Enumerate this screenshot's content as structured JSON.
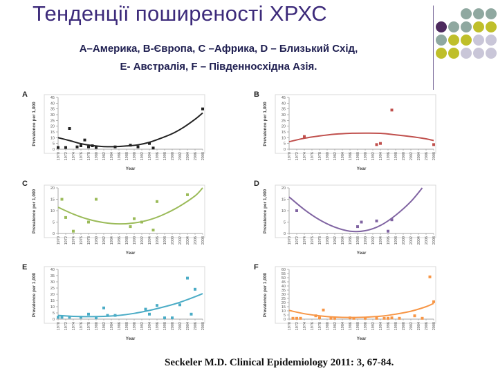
{
  "slide": {
    "title": "Тенденції поширеності ХРХС",
    "subtitle_line1": "А–Америка, В-Європа, С –Африка, D – Близький Схід,",
    "subtitle_line2": "Е- Австралія, F – Південносхідна Азія.",
    "citation": "Seckeler M.D. Clinical Epidemiology 2011: 3, 67-84.",
    "deco_colors": [
      "#4d2a5e",
      "#8fa8a0",
      "#bfbf2a",
      "#c9c6d8"
    ]
  },
  "chart_data": [
    {
      "type": "scatter",
      "panel": "A",
      "color": "#222222",
      "xlabel": "Year",
      "ylabel": "Prevalence per 1,000",
      "x_ticks": [
        "1970",
        "1972",
        "1974",
        "1976",
        "1978",
        "1980",
        "1982",
        "1984",
        "1986",
        "1988",
        "1990",
        "1992",
        "1994",
        "1996",
        "1998",
        "2000",
        "2002",
        "2004",
        "2006",
        "2008"
      ],
      "yticks": [
        0,
        5,
        10,
        15,
        20,
        25,
        30,
        35,
        40,
        45
      ],
      "ylim": [
        0,
        45
      ],
      "points": [
        [
          1970,
          1.5
        ],
        [
          1972,
          1.5
        ],
        [
          1973,
          18
        ],
        [
          1975,
          2
        ],
        [
          1976,
          3
        ],
        [
          1977,
          8
        ],
        [
          1978,
          2
        ],
        [
          1979,
          3
        ],
        [
          1980,
          1.5
        ],
        [
          1985,
          2
        ],
        [
          1989,
          3.5
        ],
        [
          1991,
          2
        ],
        [
          1994,
          5
        ],
        [
          1995,
          1
        ],
        [
          2008,
          35
        ]
      ],
      "trend": [
        [
          1970,
          10
        ],
        [
          1973,
          7.5
        ],
        [
          1976,
          4.8
        ],
        [
          1979,
          3.2
        ],
        [
          1982,
          2.3
        ],
        [
          1985,
          2.2
        ],
        [
          1988,
          2.8
        ],
        [
          1991,
          3.8
        ],
        [
          1994,
          6
        ],
        [
          1997,
          9.5
        ],
        [
          2000,
          13.5
        ],
        [
          2003,
          19
        ],
        [
          2006,
          26
        ],
        [
          2008,
          31.5
        ]
      ]
    },
    {
      "type": "scatter",
      "panel": "B",
      "color": "#c0504d",
      "xlabel": "Year",
      "ylabel": "Prevalence per 1,000",
      "x_ticks": [
        "1970",
        "1972",
        "1974",
        "1976",
        "1978",
        "1980",
        "1982",
        "1984",
        "1986",
        "1988",
        "1990",
        "1992",
        "1994",
        "1996",
        "1998",
        "2000",
        "2002",
        "2004",
        "2006",
        "2008"
      ],
      "yticks": [
        0,
        5,
        10,
        15,
        20,
        25,
        30,
        35,
        40,
        45
      ],
      "ylim": [
        0,
        45
      ],
      "points": [
        [
          1974,
          11
        ],
        [
          1993,
          4
        ],
        [
          1994,
          5
        ],
        [
          1997,
          34
        ],
        [
          2008,
          4
        ]
      ],
      "trend": [
        [
          1970,
          6.5
        ],
        [
          1974,
          9.5
        ],
        [
          1978,
          11.5
        ],
        [
          1982,
          13
        ],
        [
          1986,
          13.8
        ],
        [
          1990,
          14
        ],
        [
          1994,
          13.8
        ],
        [
          1998,
          12.5
        ],
        [
          2002,
          11
        ],
        [
          2006,
          9
        ],
        [
          2008,
          7.5
        ]
      ]
    },
    {
      "type": "scatter",
      "panel": "C",
      "color": "#9bbb59",
      "xlabel": "Year",
      "ylabel": "Prevalence per 1,000",
      "x_ticks": [
        "1970",
        "1972",
        "1974",
        "1976",
        "1978",
        "1980",
        "1982",
        "1984",
        "1986",
        "1988",
        "1990",
        "1992",
        "1994",
        "1996",
        "1998",
        "2000",
        "2002",
        "2004",
        "2006",
        "2008"
      ],
      "yticks": [
        0,
        5,
        10,
        15,
        20
      ],
      "ylim": [
        0,
        20
      ],
      "points": [
        [
          1971,
          15
        ],
        [
          1972,
          7
        ],
        [
          1974,
          1
        ],
        [
          1978,
          5
        ],
        [
          1980,
          15
        ],
        [
          1989,
          3
        ],
        [
          1990,
          6.5
        ],
        [
          1992,
          5
        ],
        [
          1995,
          1.5
        ],
        [
          1996,
          14
        ],
        [
          2004,
          17
        ]
      ],
      "trend": [
        [
          1970,
          11.5
        ],
        [
          1974,
          8.5
        ],
        [
          1978,
          6.2
        ],
        [
          1982,
          4.8
        ],
        [
          1986,
          4.2
        ],
        [
          1990,
          4.6
        ],
        [
          1994,
          6
        ],
        [
          1998,
          8.5
        ],
        [
          2002,
          12
        ],
        [
          2006,
          16.5
        ],
        [
          2008,
          20
        ]
      ]
    },
    {
      "type": "scatter",
      "panel": "D",
      "color": "#8064a2",
      "xlabel": "Year",
      "ylabel": "Prevalence per 1,000",
      "x_ticks": [
        "1970",
        "1972",
        "1974",
        "1976",
        "1978",
        "1980",
        "1982",
        "1984",
        "1986",
        "1988",
        "1990",
        "1992",
        "1994",
        "1996",
        "1998",
        "2000",
        "2002",
        "2004",
        "2006",
        "2008"
      ],
      "yticks": [
        0,
        5,
        10,
        15,
        20
      ],
      "ylim": [
        0,
        20
      ],
      "points": [
        [
          1972,
          10
        ],
        [
          1988,
          3
        ],
        [
          1989,
          5
        ],
        [
          1993,
          5.5
        ],
        [
          1996,
          1
        ],
        [
          1997,
          6
        ]
      ],
      "trend": [
        [
          1970,
          16
        ],
        [
          1974,
          10.5
        ],
        [
          1978,
          6
        ],
        [
          1982,
          2.8
        ],
        [
          1986,
          1
        ],
        [
          1990,
          1.2
        ],
        [
          1994,
          3.5
        ],
        [
          1998,
          8
        ],
        [
          2002,
          14
        ],
        [
          2005,
          20
        ]
      ]
    },
    {
      "type": "scatter",
      "panel": "E",
      "color": "#4bacc6",
      "xlabel": "Year",
      "ylabel": "Prevalence per 1,000",
      "x_ticks": [
        "1970",
        "1972",
        "1974",
        "1976",
        "1978",
        "1980",
        "1982",
        "1984",
        "1986",
        "1988",
        "1990",
        "1992",
        "1994",
        "1996",
        "1998",
        "2000",
        "2002",
        "2004",
        "2006",
        "2008"
      ],
      "yticks": [
        0,
        5,
        10,
        15,
        20,
        25,
        30,
        35,
        40
      ],
      "ylim": [
        0,
        40
      ],
      "points": [
        [
          1970,
          1.5
        ],
        [
          1971,
          1.5
        ],
        [
          1973,
          1.5
        ],
        [
          1976,
          1.5
        ],
        [
          1978,
          4
        ],
        [
          1980,
          1
        ],
        [
          1982,
          9
        ],
        [
          1983,
          3
        ],
        [
          1985,
          3
        ],
        [
          1993,
          8
        ],
        [
          1994,
          4
        ],
        [
          1996,
          11
        ],
        [
          1998,
          1
        ],
        [
          2000,
          1
        ],
        [
          2002,
          11.5
        ],
        [
          2004,
          33
        ],
        [
          2005,
          4
        ],
        [
          2006,
          24
        ]
      ],
      "trend": [
        [
          1970,
          3
        ],
        [
          1974,
          2.2
        ],
        [
          1978,
          2
        ],
        [
          1982,
          2.2
        ],
        [
          1986,
          3
        ],
        [
          1990,
          4.6
        ],
        [
          1994,
          7
        ],
        [
          1998,
          10
        ],
        [
          2002,
          13.5
        ],
        [
          2006,
          18
        ],
        [
          2008,
          20.5
        ]
      ]
    },
    {
      "type": "scatter",
      "panel": "F",
      "color": "#f79646",
      "xlabel": "Year",
      "ylabel": "Prevalence per 1,000",
      "x_ticks": [
        "1970",
        "1972",
        "1974",
        "1976",
        "1978",
        "1980",
        "1982",
        "1984",
        "1986",
        "1988",
        "1990",
        "1992",
        "1994",
        "1996",
        "1998",
        "2000",
        "2002",
        "2004",
        "2006",
        "2008"
      ],
      "yticks": [
        0,
        5,
        10,
        15,
        20,
        25,
        30,
        35,
        40,
        45,
        50,
        55,
        60
      ],
      "ylim": [
        0,
        60
      ],
      "points": [
        [
          1971,
          1
        ],
        [
          1972,
          1
        ],
        [
          1973,
          1
        ],
        [
          1977,
          4
        ],
        [
          1978,
          1.5
        ],
        [
          1979,
          11
        ],
        [
          1981,
          1
        ],
        [
          1982,
          1
        ],
        [
          1986,
          1.5
        ],
        [
          1987,
          1
        ],
        [
          1990,
          1
        ],
        [
          1993,
          1
        ],
        [
          1995,
          1
        ],
        [
          1996,
          1
        ],
        [
          1997,
          1.5
        ],
        [
          1999,
          1
        ],
        [
          2003,
          4
        ],
        [
          2005,
          1
        ],
        [
          2007,
          51
        ],
        [
          2008,
          21
        ]
      ],
      "trend": [
        [
          1970,
          10.5
        ],
        [
          1974,
          6.5
        ],
        [
          1978,
          4
        ],
        [
          1982,
          2.5
        ],
        [
          1986,
          2
        ],
        [
          1990,
          2.3
        ],
        [
          1994,
          3.5
        ],
        [
          1998,
          6
        ],
        [
          2002,
          9.5
        ],
        [
          2006,
          15
        ],
        [
          2008,
          19
        ]
      ]
    }
  ]
}
